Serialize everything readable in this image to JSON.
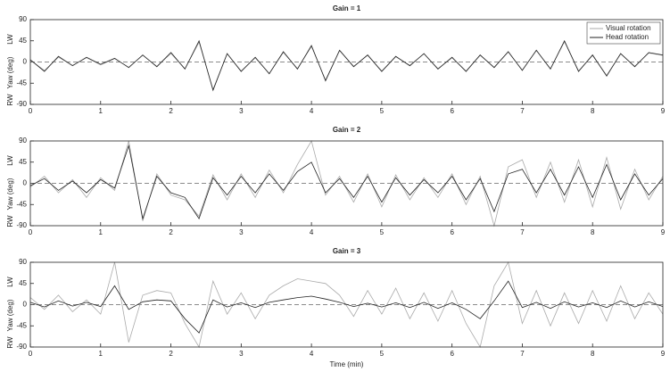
{
  "chart_data": [
    {
      "type": "line",
      "title": "Gain = 1",
      "y_label": "Yaw (deg)",
      "y_label_top": "LW",
      "y_label_bottom": "RW",
      "legend": "upper right",
      "reference_line": 0,
      "x": [
        0,
        0.2,
        0.4,
        0.6,
        0.8,
        1,
        1.2,
        1.4,
        1.6,
        1.8,
        2,
        2.2,
        2.4,
        2.6,
        2.8,
        3,
        3.2,
        3.4,
        3.6,
        3.8,
        4,
        4.2,
        4.4,
        4.6,
        4.8,
        5,
        5.2,
        5.4,
        5.6,
        5.8,
        6,
        6.2,
        6.4,
        6.6,
        6.8,
        7,
        7.2,
        7.4,
        7.6,
        7.8,
        8,
        8.2,
        8.4,
        8.6,
        8.8,
        9
      ],
      "xlim": [
        0,
        9
      ],
      "xticks": [
        0,
        1,
        2,
        3,
        4,
        5,
        6,
        7,
        8,
        9
      ],
      "ylim": [
        -90,
        90
      ],
      "yticks": [
        -90,
        -45,
        0,
        45,
        90
      ],
      "series": [
        {
          "name": "Visual rotation",
          "color": "#aaaaaa",
          "values": [
            4,
            -18,
            10,
            -7,
            9,
            -6,
            7,
            -11,
            14,
            -9,
            18,
            -14,
            42,
            -58,
            17,
            -19,
            9,
            -24,
            20,
            -14,
            33,
            -38,
            24,
            -9,
            14,
            -19,
            11,
            -7,
            17,
            -14,
            9,
            -19,
            14,
            -11,
            21,
            -17,
            24,
            -14,
            43,
            -19,
            14,
            -28,
            17,
            -9,
            19,
            14
          ]
        },
        {
          "name": "Head rotation",
          "color": "#222222",
          "values": [
            5,
            -20,
            12,
            -8,
            10,
            -5,
            8,
            -12,
            15,
            -10,
            20,
            -15,
            45,
            -60,
            18,
            -20,
            10,
            -25,
            22,
            -15,
            35,
            -40,
            25,
            -10,
            15,
            -20,
            12,
            -8,
            18,
            -15,
            10,
            -20,
            15,
            -12,
            22,
            -18,
            25,
            -15,
            45,
            -20,
            15,
            -30,
            18,
            -10,
            20,
            15
          ]
        }
      ]
    },
    {
      "type": "line",
      "title": "Gain = 2",
      "y_label": "Yaw (deg)",
      "y_label_top": "LW",
      "y_label_bottom": "RW",
      "reference_line": 0,
      "x": [
        0,
        0.2,
        0.4,
        0.6,
        0.8,
        1,
        1.2,
        1.4,
        1.6,
        1.8,
        2,
        2.2,
        2.4,
        2.6,
        2.8,
        3,
        3.2,
        3.4,
        3.6,
        3.8,
        4,
        4.2,
        4.4,
        4.6,
        4.8,
        5,
        5.2,
        5.4,
        5.6,
        5.8,
        6,
        6.2,
        6.4,
        6.6,
        6.8,
        7,
        7.2,
        7.4,
        7.6,
        7.8,
        8,
        8.2,
        8.4,
        8.6,
        8.8,
        9
      ],
      "xlim": [
        0,
        9
      ],
      "xticks": [
        0,
        1,
        2,
        3,
        4,
        5,
        6,
        7,
        8,
        9
      ],
      "ylim": [
        -90,
        90
      ],
      "yticks": [
        -90,
        -45,
        0,
        45,
        90
      ],
      "series": [
        {
          "color": "#aaaaaa",
          "values": [
            -8,
            15,
            -20,
            8,
            -30,
            12,
            -15,
            90,
            -80,
            20,
            -25,
            -35,
            -70,
            18,
            -35,
            20,
            -30,
            28,
            -20,
            40,
            90,
            -25,
            15,
            -40,
            20,
            -50,
            18,
            -35,
            12,
            -30,
            20,
            -45,
            15,
            -90,
            35,
            50,
            -30,
            45,
            -40,
            50,
            -50,
            55,
            -55,
            30,
            -35,
            15
          ]
        },
        {
          "color": "#222222",
          "values": [
            -5,
            10,
            -15,
            5,
            -20,
            8,
            -10,
            80,
            -75,
            15,
            -20,
            -30,
            -75,
            12,
            -25,
            15,
            -20,
            20,
            -15,
            25,
            45,
            -20,
            10,
            -30,
            15,
            -40,
            12,
            -25,
            8,
            -20,
            15,
            -35,
            10,
            -60,
            20,
            30,
            -20,
            30,
            -25,
            35,
            -30,
            40,
            -35,
            20,
            -25,
            10
          ]
        }
      ]
    },
    {
      "type": "line",
      "title": "Gain = 3",
      "y_label": "Yaw (deg)",
      "y_label_top": "LW",
      "y_label_bottom": "RW",
      "x_label": "Time (min)",
      "reference_line": 0,
      "x": [
        0,
        0.2,
        0.4,
        0.6,
        0.8,
        1,
        1.2,
        1.4,
        1.6,
        1.8,
        2,
        2.2,
        2.4,
        2.6,
        2.8,
        3,
        3.2,
        3.4,
        3.6,
        3.8,
        4,
        4.2,
        4.4,
        4.6,
        4.8,
        5,
        5.2,
        5.4,
        5.6,
        5.8,
        6,
        6.2,
        6.4,
        6.6,
        6.8,
        7,
        7.2,
        7.4,
        7.6,
        7.8,
        8,
        8.2,
        8.4,
        8.6,
        8.8,
        9
      ],
      "xlim": [
        0,
        9
      ],
      "xticks": [
        0,
        1,
        2,
        3,
        4,
        5,
        6,
        7,
        8,
        9
      ],
      "ylim": [
        -90,
        90
      ],
      "yticks": [
        -90,
        -45,
        0,
        45,
        90
      ],
      "series": [
        {
          "color": "#aaaaaa",
          "values": [
            15,
            -10,
            20,
            -15,
            10,
            -20,
            90,
            -80,
            20,
            30,
            25,
            -40,
            -90,
            50,
            -20,
            25,
            -30,
            20,
            40,
            55,
            50,
            45,
            20,
            -25,
            30,
            -20,
            35,
            -30,
            25,
            -35,
            30,
            -40,
            -90,
            40,
            90,
            -40,
            30,
            -45,
            25,
            -40,
            30,
            -35,
            40,
            -30,
            25,
            -20
          ]
        },
        {
          "color": "#222222",
          "values": [
            5,
            -5,
            8,
            -3,
            5,
            -4,
            40,
            -10,
            6,
            10,
            8,
            -30,
            -60,
            10,
            -5,
            4,
            -6,
            5,
            10,
            15,
            18,
            12,
            5,
            -4,
            3,
            -5,
            4,
            -6,
            5,
            -8,
            4,
            -10,
            -30,
            8,
            50,
            -6,
            5,
            -8,
            6,
            -5,
            4,
            -6,
            8,
            -5,
            6,
            -4
          ]
        }
      ]
    }
  ]
}
